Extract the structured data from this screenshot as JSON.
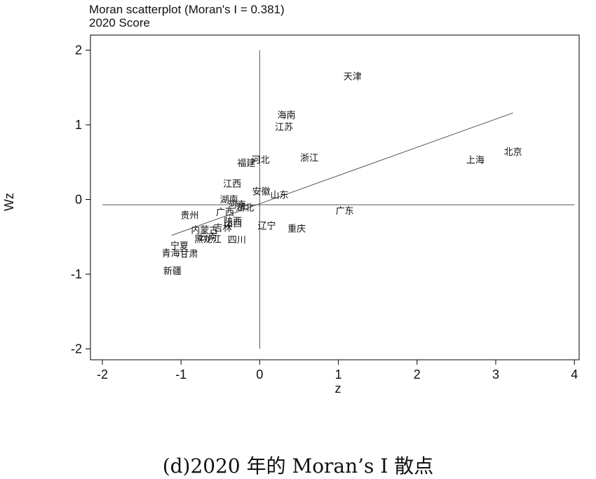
{
  "chart_data": {
    "type": "scatter",
    "title": "Moran scatterplot (Moran's I = 0.381)",
    "subtitle": "2020 Score",
    "xlabel": "z",
    "ylabel": "Wz",
    "xlim": [
      -2,
      4
    ],
    "ylim": [
      -2,
      2
    ],
    "xticks": [
      "-2",
      "-1",
      "0",
      "1",
      "2",
      "3",
      "4"
    ],
    "yticks": [
      "-2",
      "-1",
      "0",
      "1",
      "2"
    ],
    "x_mean_line": 0,
    "y_mean_line": -0.07,
    "fit_line": {
      "x": [
        -1.12,
        3.22
      ],
      "y": [
        -0.48,
        1.16
      ]
    },
    "points": [
      {
        "label": "天津",
        "x": 1.18,
        "y": 1.65
      },
      {
        "label": "海南",
        "x": 0.34,
        "y": 1.13
      },
      {
        "label": "江苏",
        "x": 0.31,
        "y": 0.97
      },
      {
        "label": "北京",
        "x": 3.22,
        "y": 0.64
      },
      {
        "label": "上海",
        "x": 2.74,
        "y": 0.53
      },
      {
        "label": "浙江",
        "x": 0.63,
        "y": 0.56
      },
      {
        "label": "河北",
        "x": 0.01,
        "y": 0.53
      },
      {
        "label": "福建",
        "x": -0.17,
        "y": 0.49
      },
      {
        "label": "江西",
        "x": -0.35,
        "y": 0.21
      },
      {
        "label": "安徽",
        "x": 0.02,
        "y": 0.11
      },
      {
        "label": "山东",
        "x": 0.25,
        "y": 0.06
      },
      {
        "label": "湖南",
        "x": -0.39,
        "y": 0.0
      },
      {
        "label": "河南",
        "x": -0.29,
        "y": -0.07
      },
      {
        "label": "湖北",
        "x": -0.19,
        "y": -0.11
      },
      {
        "label": "广西",
        "x": -0.44,
        "y": -0.17
      },
      {
        "label": "广东",
        "x": 1.08,
        "y": -0.15
      },
      {
        "label": "贵州",
        "x": -0.89,
        "y": -0.21
      },
      {
        "label": "陕西",
        "x": -0.34,
        "y": -0.29
      },
      {
        "label": "山西",
        "x": -0.34,
        "y": -0.32
      },
      {
        "label": "辽宁",
        "x": 0.09,
        "y": -0.35
      },
      {
        "label": "吉林",
        "x": -0.47,
        "y": -0.38
      },
      {
        "label": "重庆",
        "x": 0.47,
        "y": -0.39
      },
      {
        "label": "内蒙古",
        "x": -0.7,
        "y": -0.41
      },
      {
        "label": "云南",
        "x": -0.66,
        "y": -0.5
      },
      {
        "label": "黑龙江",
        "x": -0.66,
        "y": -0.53
      },
      {
        "label": "四川",
        "x": -0.29,
        "y": -0.54
      },
      {
        "label": "宁夏",
        "x": -1.02,
        "y": -0.62
      },
      {
        "label": "甘肃",
        "x": -0.9,
        "y": -0.73
      },
      {
        "label": "青海",
        "x": -1.13,
        "y": -0.72
      },
      {
        "label": "新疆",
        "x": -1.11,
        "y": -0.96
      }
    ]
  },
  "caption": "(d)2020 年的 Moran’s I 散点"
}
